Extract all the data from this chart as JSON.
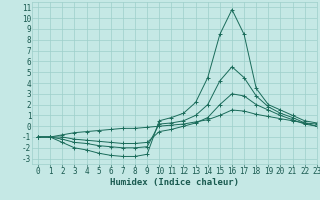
{
  "title": "",
  "xlabel": "Humidex (Indice chaleur)",
  "xlim": [
    -0.5,
    23
  ],
  "ylim": [
    -3.5,
    11.5
  ],
  "yticks": [
    -3,
    -2,
    -1,
    0,
    1,
    2,
    3,
    4,
    5,
    6,
    7,
    8,
    9,
    10,
    11
  ],
  "xticks": [
    0,
    1,
    2,
    3,
    4,
    5,
    6,
    7,
    8,
    9,
    10,
    11,
    12,
    13,
    14,
    15,
    16,
    17,
    18,
    19,
    20,
    21,
    22,
    23
  ],
  "bg_color": "#c5e8e5",
  "grid_color": "#9ecfca",
  "line_color": "#1a6b5a",
  "curve1_x": [
    0,
    1,
    2,
    3,
    4,
    5,
    6,
    7,
    8,
    9,
    10,
    11,
    12,
    13,
    14,
    15,
    16,
    17,
    18,
    19,
    20,
    21,
    22,
    23
  ],
  "curve1_y": [
    -1,
    -1,
    -1.5,
    -2,
    -2.2,
    -2.5,
    -2.7,
    -2.8,
    -2.8,
    -2.6,
    0.5,
    0.8,
    1.2,
    2.2,
    4.5,
    8.5,
    10.8,
    8.5,
    3.5,
    2.0,
    1.5,
    1.0,
    0.5,
    0.3
  ],
  "curve2_x": [
    0,
    1,
    2,
    3,
    4,
    5,
    6,
    7,
    8,
    9,
    10,
    11,
    12,
    13,
    14,
    15,
    16,
    17,
    18,
    19,
    20,
    21,
    22,
    23
  ],
  "curve2_y": [
    -1,
    -1,
    -1.2,
    -1.5,
    -1.6,
    -1.8,
    -1.9,
    -2.0,
    -2.0,
    -1.9,
    0.2,
    0.3,
    0.5,
    1.0,
    2.0,
    4.2,
    5.5,
    4.5,
    2.8,
    1.8,
    1.2,
    0.8,
    0.3,
    0.0
  ],
  "curve3_x": [
    0,
    1,
    2,
    3,
    4,
    5,
    6,
    7,
    8,
    9,
    10,
    11,
    12,
    13,
    14,
    15,
    16,
    17,
    18,
    19,
    20,
    21,
    22,
    23
  ],
  "curve3_y": [
    -1,
    -1,
    -1.0,
    -1.2,
    -1.3,
    -1.4,
    -1.5,
    -1.6,
    -1.6,
    -1.5,
    -0.5,
    -0.3,
    0.0,
    0.3,
    0.8,
    2.0,
    3.0,
    2.8,
    2.0,
    1.5,
    1.0,
    0.6,
    0.2,
    0.0
  ],
  "curve4_x": [
    0,
    1,
    2,
    3,
    4,
    5,
    6,
    7,
    8,
    9,
    10,
    11,
    12,
    13,
    14,
    15,
    16,
    17,
    18,
    19,
    20,
    21,
    22,
    23
  ],
  "curve4_y": [
    -1,
    -1,
    -0.8,
    -0.6,
    -0.5,
    -0.4,
    -0.3,
    -0.2,
    -0.2,
    -0.1,
    0.0,
    0.1,
    0.2,
    0.4,
    0.6,
    1.0,
    1.5,
    1.4,
    1.1,
    0.9,
    0.7,
    0.5,
    0.3,
    0.2
  ],
  "label_color": "#1a5a50",
  "tick_fontsize": 5.5,
  "xlabel_fontsize": 6.5,
  "marker_size": 2.5,
  "lw": 0.7
}
